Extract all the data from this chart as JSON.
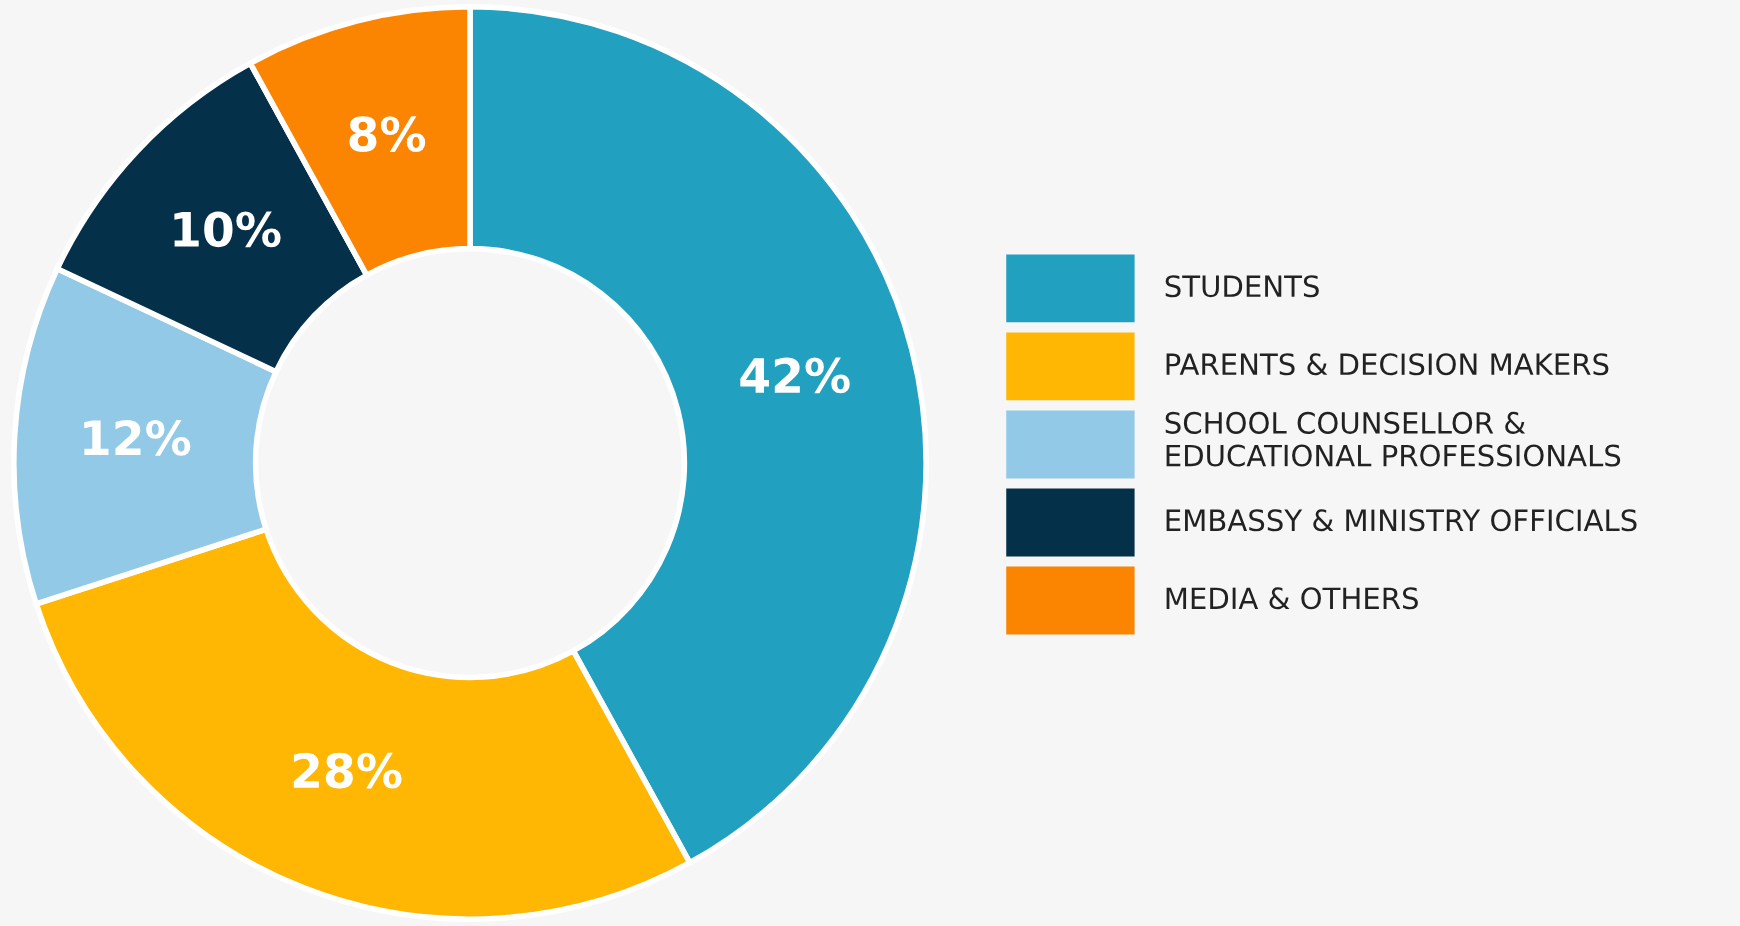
{
  "chart_data": {
    "type": "donut",
    "categories": [
      "STUDENTS",
      "PARENTS & DECISION MAKERS",
      "SCHOOL COUNSELLOR &\nEDUCATIONAL PROFESSIONALS",
      "EMBASSY & MINISTRY OFFICIALS",
      "MEDIA & OTHERS"
    ],
    "values": [
      42,
      28,
      12,
      10,
      8
    ],
    "colors": [
      "#22a0c0",
      "#ffb703",
      "#92c9e6",
      "#05304a",
      "#fb8500"
    ],
    "value_labels": [
      "42%",
      "28%",
      "12%",
      "10%",
      "8%"
    ],
    "legend": "right"
  }
}
